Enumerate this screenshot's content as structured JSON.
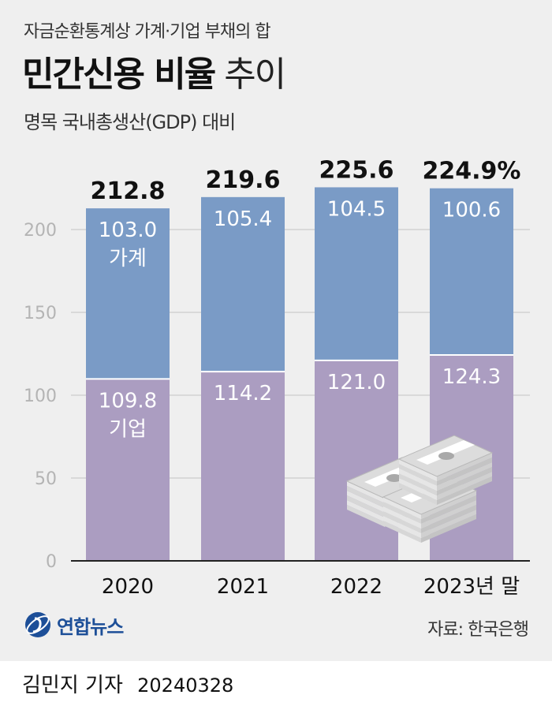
{
  "header": {
    "subtitle": "자금순환통계상 가계·기업 부채의 합",
    "title_bold": "민간신용 비율",
    "title_light": "추이",
    "unit": "명목 국내총생산(GDP) 대비"
  },
  "chart_data": {
    "type": "bar",
    "stacked": true,
    "categories": [
      "2020",
      "2021",
      "2022",
      "2023년 말"
    ],
    "series": [
      {
        "name": "기업",
        "values": [
          109.8,
          114.2,
          121.0,
          124.3
        ],
        "color": "#ab9dc1"
      },
      {
        "name": "가계",
        "values": [
          103.0,
          105.4,
          104.5,
          100.6
        ],
        "color": "#7a9bc6"
      }
    ],
    "totals": [
      "212.8",
      "219.6",
      "225.6",
      "224.9%"
    ],
    "segment_labels": {
      "기업": [
        "109.8",
        "114.2",
        "121.0",
        "124.3"
      ],
      "가계": [
        "103.0",
        "105.4",
        "104.5",
        "100.6"
      ]
    },
    "inline_series_labels": {
      "가계": "가계",
      "기업": "기업"
    },
    "yticks": [
      0,
      50,
      100,
      150,
      200
    ],
    "ylim": [
      0,
      225.6
    ],
    "grid": true
  },
  "footer": {
    "logo_text": "연합뉴스",
    "source": "자료: 한국은행",
    "reporter": "김민지 기자",
    "date": "20240328"
  },
  "colors": {
    "background": "#efefef",
    "corporate": "#ab9dc1",
    "household": "#7a9bc6",
    "logo": "#1d4f98"
  }
}
